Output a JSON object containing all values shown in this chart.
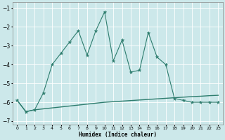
{
  "xlabel": "Humidex (Indice chaleur)",
  "line1_x": [
    0,
    1,
    2,
    3,
    4,
    5,
    6,
    7,
    8,
    9,
    10,
    11,
    12,
    13,
    14,
    15,
    16,
    17,
    18,
    19,
    20,
    21,
    22,
    23
  ],
  "line1_y": [
    -5.9,
    -6.5,
    -6.4,
    -6.35,
    -6.3,
    -6.25,
    -6.2,
    -6.15,
    -6.1,
    -6.05,
    -6.0,
    -5.97,
    -5.94,
    -5.91,
    -5.88,
    -5.85,
    -5.82,
    -5.79,
    -5.76,
    -5.73,
    -5.7,
    -5.68,
    -5.65,
    -5.63
  ],
  "line2_x": [
    0,
    1,
    2,
    3,
    4,
    5,
    6,
    7,
    8,
    9,
    10,
    11,
    12,
    13,
    14,
    15,
    16,
    17,
    18,
    19,
    20,
    21,
    22,
    23
  ],
  "line2_y": [
    -5.9,
    -6.5,
    -6.4,
    -5.5,
    -4.0,
    -3.4,
    -2.8,
    -2.2,
    -3.5,
    -2.2,
    -1.2,
    -3.8,
    -2.7,
    -4.4,
    -4.3,
    -2.3,
    -3.6,
    -4.0,
    -5.8,
    -5.9,
    -6.0,
    -6.0,
    -6.0,
    -6.0
  ],
  "line_color": "#2e7d6e",
  "bg_color": "#cce8ea",
  "grid_color": "#ffffff",
  "ylim": [
    -7.2,
    -0.7
  ],
  "xlim": [
    -0.5,
    23.5
  ],
  "yticks": [
    -7,
    -6,
    -5,
    -4,
    -3,
    -2,
    -1
  ],
  "xticks": [
    0,
    1,
    2,
    3,
    4,
    5,
    6,
    7,
    8,
    9,
    10,
    11,
    12,
    13,
    14,
    15,
    16,
    17,
    18,
    19,
    20,
    21,
    22,
    23
  ]
}
